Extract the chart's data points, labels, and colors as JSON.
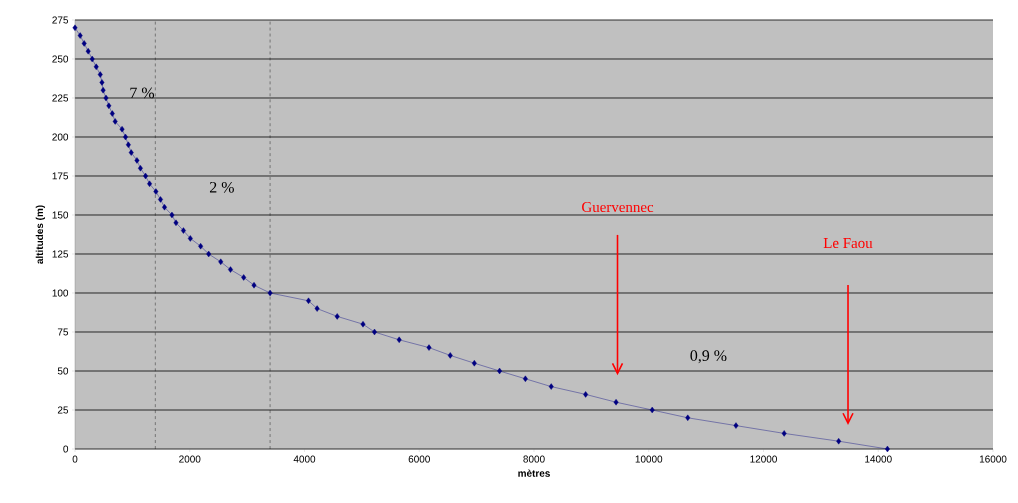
{
  "chart_data": {
    "type": "line",
    "xlabel": "mètres",
    "ylabel": "altitudes (m)",
    "x": [
      0,
      90,
      160,
      230,
      300,
      370,
      440,
      470,
      490,
      540,
      590,
      650,
      700,
      820,
      880,
      930,
      980,
      1080,
      1140,
      1230,
      1300,
      1410,
      1490,
      1560,
      1690,
      1760,
      1890,
      2010,
      2190,
      2330,
      2540,
      2710,
      2940,
      3120,
      3400,
      4070,
      4220,
      4570,
      5020,
      5220,
      5650,
      6170,
      6540,
      6960,
      7400,
      7850,
      8300,
      8900,
      9430,
      10060,
      10680,
      11520,
      12360,
      13310,
      14160
    ],
    "series": [
      {
        "color": "#000080",
        "values": [
          270,
          265,
          260,
          255,
          250,
          245,
          240,
          235,
          230,
          225,
          220,
          215,
          210,
          205,
          200,
          195,
          190,
          185,
          180,
          175,
          170,
          165,
          160,
          155,
          150,
          145,
          140,
          135,
          130,
          125,
          120,
          115,
          110,
          105,
          100,
          95,
          90,
          85,
          80,
          75,
          70,
          65,
          60,
          55,
          50,
          45,
          40,
          35,
          30,
          25,
          20,
          15,
          10,
          5,
          0
        ]
      }
    ],
    "xlim": [
      0,
      16000
    ],
    "xticks": [
      0,
      2000,
      4000,
      6000,
      8000,
      10000,
      12000,
      14000,
      16000
    ],
    "ylim": [
      0,
      275
    ],
    "yticks": [
      0,
      25,
      50,
      75,
      100,
      125,
      150,
      175,
      200,
      225,
      250,
      275
    ],
    "grid": "y",
    "marker": "diamond",
    "line_style": "solid",
    "ref_lines": [
      {
        "axis": "x",
        "value": 1400,
        "line_style": "dashed",
        "color": "#000000"
      },
      {
        "axis": "x",
        "value": 3400,
        "line_style": "dashed",
        "color": "#000000"
      }
    ],
    "annotations": [
      "7 %",
      "2 %",
      "0,9 %",
      "Guervennec",
      "Le Faou"
    ]
  }
}
